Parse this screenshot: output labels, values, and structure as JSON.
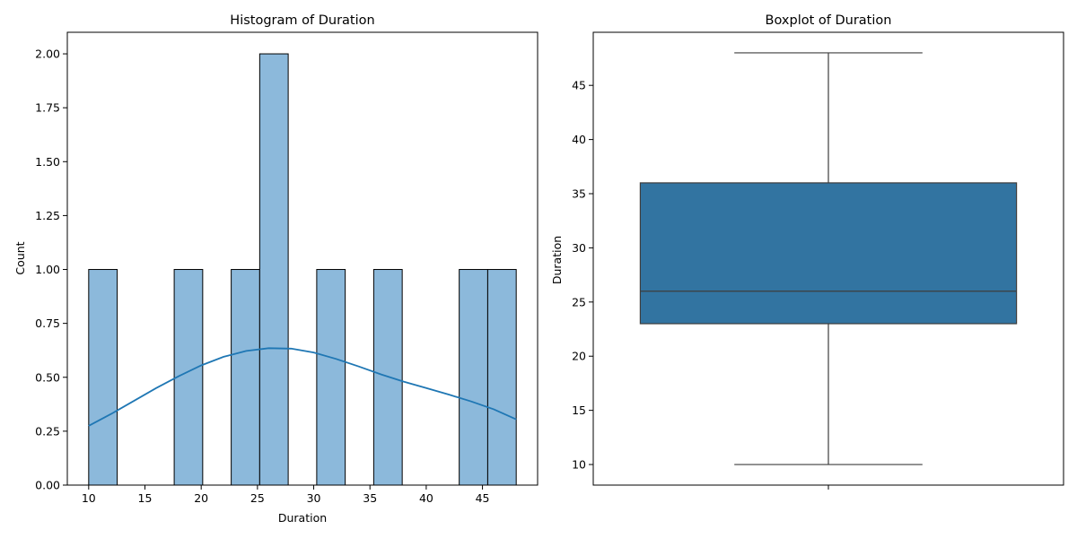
{
  "chart_data": [
    {
      "type": "bar",
      "subtype": "histogram",
      "title": "Histogram of Duration",
      "xlabel": "Duration",
      "ylabel": "Count",
      "xlim": [
        8.1,
        49.9
      ],
      "ylim": [
        0,
        2.1
      ],
      "xticks": [
        10,
        15,
        20,
        25,
        30,
        35,
        40,
        45
      ],
      "yticks": [
        "0.00",
        "0.25",
        "0.50",
        "0.75",
        "1.00",
        "1.25",
        "1.50",
        "1.75",
        "2.00"
      ],
      "bins": [
        {
          "start": 10.0,
          "end": 12.533,
          "count": 1
        },
        {
          "start": 12.533,
          "end": 15.067,
          "count": 0
        },
        {
          "start": 15.067,
          "end": 17.6,
          "count": 0
        },
        {
          "start": 17.6,
          "end": 20.133,
          "count": 1
        },
        {
          "start": 20.133,
          "end": 22.667,
          "count": 0
        },
        {
          "start": 22.667,
          "end": 25.2,
          "count": 1
        },
        {
          "start": 25.2,
          "end": 27.733,
          "count": 2
        },
        {
          "start": 27.733,
          "end": 30.267,
          "count": 0
        },
        {
          "start": 30.267,
          "end": 32.8,
          "count": 1
        },
        {
          "start": 32.8,
          "end": 35.333,
          "count": 0
        },
        {
          "start": 35.333,
          "end": 37.867,
          "count": 1
        },
        {
          "start": 37.867,
          "end": 40.4,
          "count": 0
        },
        {
          "start": 40.4,
          "end": 42.933,
          "count": 0
        },
        {
          "start": 42.933,
          "end": 45.467,
          "count": 1
        },
        {
          "start": 45.467,
          "end": 48.0,
          "count": 1
        }
      ],
      "kde": {
        "x": [
          10,
          12,
          14,
          16,
          18,
          20,
          22,
          24,
          26,
          28,
          30,
          32,
          34,
          36,
          38,
          40,
          42,
          44,
          46,
          48
        ],
        "y": [
          0.275,
          0.33,
          0.39,
          0.45,
          0.505,
          0.555,
          0.595,
          0.622,
          0.635,
          0.633,
          0.615,
          0.585,
          0.55,
          0.513,
          0.48,
          0.45,
          0.42,
          0.388,
          0.352,
          0.305
        ]
      },
      "bar_color": "#8cb9db",
      "line_color": "#1f77b4",
      "grid": false
    },
    {
      "type": "boxplot",
      "title": "Boxplot of Duration",
      "ylabel": "Duration",
      "ylim": [
        8.1,
        49.9
      ],
      "yticks": [
        10,
        15,
        20,
        25,
        30,
        35,
        40,
        45
      ],
      "stats": {
        "whisker_low": 10,
        "q1": 23,
        "median": 26,
        "q3": 36,
        "whisker_high": 48
      },
      "box_color": "#3274a1",
      "grid": false
    }
  ]
}
